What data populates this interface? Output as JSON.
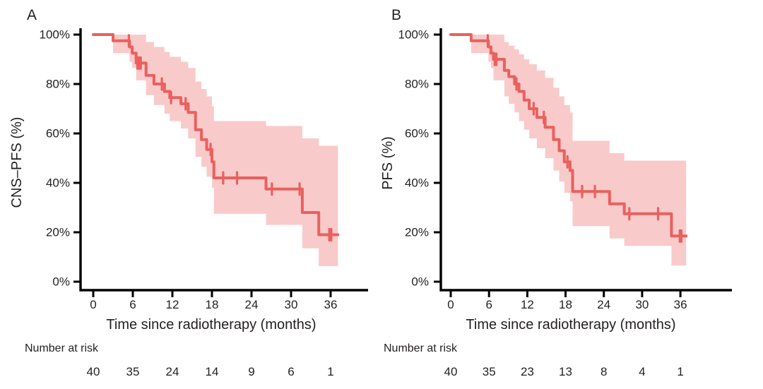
{
  "colors": {
    "curve": "#e8615e",
    "band": "#f9caca",
    "axis": "#000000",
    "text": "#231f20",
    "background": "#ffffff"
  },
  "panels": [
    {
      "letter": "A",
      "y_axis_title": "CNS–PFS (%)",
      "x_axis_title": "Time since radiotherapy (months)",
      "number_at_risk_label": "Number at risk"
    },
    {
      "letter": "B",
      "y_axis_title": "PFS (%)",
      "x_axis_title": "Time since radiotherapy (months)",
      "number_at_risk_label": "Number at risk"
    }
  ],
  "chart_data": [
    {
      "type": "line",
      "subtype": "kaplan-meier-step",
      "panel": "A",
      "title": "",
      "xlabel": "Time since radiotherapy (months)",
      "ylabel": "CNS–PFS (%)",
      "xlim": [
        0,
        38
      ],
      "ylim": [
        0,
        100
      ],
      "grid": false,
      "legend": "none",
      "x_ticks": [
        0,
        6,
        12,
        18,
        24,
        30,
        36
      ],
      "x_tick_labels": [
        "0",
        "6",
        "12",
        "18",
        "24",
        "30",
        "36"
      ],
      "y_ticks": [
        0,
        20,
        40,
        60,
        80,
        100
      ],
      "y_tick_labels": [
        "0%",
        "20%",
        "40%",
        "60%",
        "80%",
        "100%"
      ],
      "steps": [
        [
          0,
          100
        ],
        [
          3,
          97.5
        ],
        [
          5.5,
          95
        ],
        [
          5.9,
          92.5
        ],
        [
          6.5,
          88.5
        ],
        [
          8,
          83.5
        ],
        [
          9.2,
          80
        ],
        [
          10.8,
          77
        ],
        [
          11.6,
          74.5
        ],
        [
          13.3,
          72
        ],
        [
          14.4,
          68.5
        ],
        [
          15.5,
          61.5
        ],
        [
          16.4,
          57.5
        ],
        [
          17.2,
          53.5
        ],
        [
          18,
          48.5
        ],
        [
          18.3,
          42
        ],
        [
          26.2,
          37.5
        ],
        [
          31.7,
          28
        ],
        [
          34.2,
          19
        ]
      ],
      "end_time": 37.1,
      "censor_times": [
        5.4,
        6.7,
        6.95,
        7.2,
        10.4,
        11.8,
        14,
        17.8,
        19.7,
        21.8,
        27.1,
        31.3,
        35.8,
        36.1
      ],
      "ci_band": [
        [
          3,
          100,
          92.5
        ],
        [
          5.5,
          100,
          89
        ],
        [
          5.9,
          100,
          86.5
        ],
        [
          6.5,
          100,
          81.5
        ],
        [
          8,
          97,
          75.5
        ],
        [
          9.2,
          95,
          71.5
        ],
        [
          10.8,
          93,
          68
        ],
        [
          11.6,
          91,
          65
        ],
        [
          13.3,
          89,
          62
        ],
        [
          14.4,
          86.5,
          58
        ],
        [
          15.5,
          81,
          50.5
        ],
        [
          16.4,
          78,
          46.5
        ],
        [
          17.2,
          75,
          42.5
        ],
        [
          18,
          71,
          38
        ],
        [
          18.3,
          65,
          27.5
        ],
        [
          26.2,
          63,
          23
        ],
        [
          31.7,
          58,
          13.5
        ],
        [
          34.2,
          55,
          6.3
        ]
      ],
      "number_at_risk": {
        "label": "Number at risk",
        "times": [
          0,
          6,
          12,
          18,
          24,
          30,
          36
        ],
        "counts": [
          "40",
          "35",
          "24",
          "14",
          "9",
          "6",
          "1"
        ]
      }
    },
    {
      "type": "line",
      "subtype": "kaplan-meier-step",
      "panel": "B",
      "title": "",
      "xlabel": "Time since radiotherapy (months)",
      "ylabel": "PFS (%)",
      "xlim": [
        0,
        38
      ],
      "ylim": [
        0,
        100
      ],
      "grid": false,
      "legend": "none",
      "x_ticks": [
        0,
        6,
        12,
        18,
        24,
        30,
        36
      ],
      "x_tick_labels": [
        "0",
        "6",
        "12",
        "18",
        "24",
        "30",
        "36"
      ],
      "y_ticks": [
        0,
        20,
        40,
        60,
        80,
        100
      ],
      "y_tick_labels": [
        "0%",
        "20%",
        "40%",
        "60%",
        "80%",
        "100%"
      ],
      "steps": [
        [
          0,
          100
        ],
        [
          3.2,
          97.5
        ],
        [
          5.9,
          95
        ],
        [
          6.3,
          92.5
        ],
        [
          6.7,
          90
        ],
        [
          8.4,
          85.5
        ],
        [
          9.1,
          83
        ],
        [
          10,
          80
        ],
        [
          10.7,
          77
        ],
        [
          11.5,
          73.5
        ],
        [
          12.3,
          70
        ],
        [
          13.5,
          66.5
        ],
        [
          14.8,
          62.5
        ],
        [
          16.1,
          57.5
        ],
        [
          17,
          53
        ],
        [
          17.8,
          48.5
        ],
        [
          18.7,
          45
        ],
        [
          19.1,
          36.5
        ],
        [
          24.9,
          31.5
        ],
        [
          27.2,
          27.5
        ],
        [
          34.6,
          18.5
        ]
      ],
      "end_time": 36.9,
      "censor_times": [
        5.8,
        6.9,
        7.15,
        10.3,
        13,
        14.6,
        18.3,
        20.6,
        22.6,
        28,
        32.5,
        35.9,
        36.15
      ],
      "ci_band": [
        [
          3.2,
          100,
          92.5
        ],
        [
          5.9,
          100,
          89
        ],
        [
          6.3,
          100,
          86.5
        ],
        [
          6.7,
          100,
          81.5
        ],
        [
          8.4,
          97,
          75
        ],
        [
          9.1,
          95.5,
          72
        ],
        [
          10,
          94,
          68.5
        ],
        [
          10.7,
          92,
          65
        ],
        [
          11.5,
          90,
          61.5
        ],
        [
          12.3,
          88,
          58
        ],
        [
          13.5,
          85.5,
          54
        ],
        [
          14.8,
          82.5,
          50
        ],
        [
          16.1,
          78.5,
          45
        ],
        [
          17,
          75,
          40.5
        ],
        [
          17.8,
          71.5,
          36
        ],
        [
          18.7,
          68.5,
          32.5
        ],
        [
          19.1,
          57,
          22.5
        ],
        [
          24.9,
          52,
          17.5
        ],
        [
          27.2,
          49,
          14.5
        ],
        [
          34.6,
          49,
          6.5
        ]
      ],
      "number_at_risk": {
        "label": "Number at risk",
        "times": [
          0,
          6,
          12,
          18,
          24,
          30,
          36
        ],
        "counts": [
          "40",
          "35",
          "23",
          "13",
          "8",
          "4",
          "1"
        ]
      }
    }
  ]
}
